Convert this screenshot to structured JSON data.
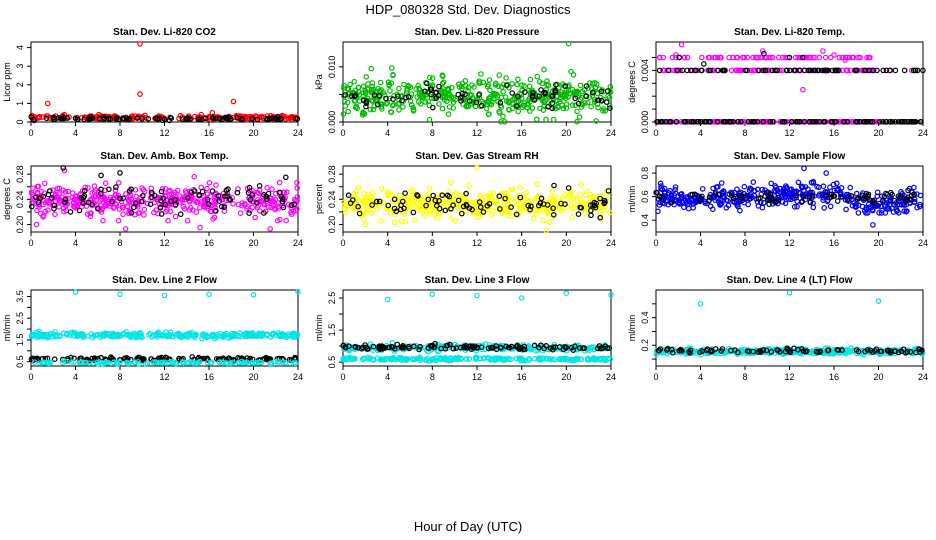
{
  "figure": {
    "title": "HDP_080328  Std. Dev. Diagnostics",
    "xlabel": "Hour of Day (UTC)"
  },
  "chart_data": [
    {
      "type": "scatter",
      "title": "Stan. Dev. Li-820 CO2",
      "xlabel": "",
      "ylabel": "Licor ppm",
      "xlim": [
        0,
        24
      ],
      "ylim": [
        0,
        4.3
      ],
      "xticks": [
        0,
        4,
        8,
        12,
        16,
        20,
        24
      ],
      "yticks": [
        0,
        1,
        2,
        3,
        4
      ],
      "ytick_labels": [
        "0",
        "1",
        "2",
        "3",
        "4"
      ],
      "series": [
        {
          "name": "primary",
          "color": "#ff0000",
          "points": [
            [
              1.5,
              1.0
            ],
            [
              3.0,
              0.4
            ],
            [
              6.1,
              0.4
            ],
            [
              9.8,
              4.2
            ],
            [
              9.8,
              1.5
            ],
            [
              15.3,
              0.4
            ],
            [
              16.3,
              0.5
            ],
            [
              18.2,
              1.1
            ],
            [
              18.5,
              0.3
            ],
            [
              20.7,
              0.3
            ]
          ],
          "cloud": {
            "center": 0.25,
            "spread": 0.08,
            "n": 180
          }
        },
        {
          "name": "secondary",
          "color": "#000000",
          "points": [],
          "cloud": {
            "center": 0.18,
            "spread": 0.06,
            "n": 90
          }
        }
      ]
    },
    {
      "type": "scatter",
      "title": "Stan. Dev. Li-820 Pressure",
      "xlabel": "",
      "ylabel": "kPa",
      "xlim": [
        0,
        24
      ],
      "ylim": [
        0,
        0.0145
      ],
      "xticks": [
        0,
        4,
        8,
        12,
        16,
        20,
        24
      ],
      "yticks": [
        0,
        0.005,
        0.01
      ],
      "ytick_labels": [
        "0.000",
        "0.010"
      ],
      "ytick_label_values": [
        0,
        0.01
      ],
      "series": [
        {
          "name": "primary",
          "color": "#00bb00",
          "points": [
            [
              20.2,
              0.0142
            ],
            [
              14.0,
              0.0085
            ],
            [
              18.0,
              0.0095
            ]
          ],
          "cloud": {
            "center": 0.0045,
            "spread": 0.0028,
            "n": 460
          }
        },
        {
          "name": "secondary",
          "color": "#000000",
          "points": [
            [
              7.5,
              0.007
            ],
            [
              21.8,
              0.0065
            ]
          ],
          "cloud": {
            "center": 0.0045,
            "spread": 0.0016,
            "n": 70
          }
        }
      ]
    },
    {
      "type": "scatter",
      "title": "Stan. Dev. Li-820 Temp.",
      "xlabel": "",
      "ylabel": "degrees C",
      "xlim": [
        0,
        24
      ],
      "ylim": [
        0,
        0.0062
      ],
      "xticks": [
        0,
        4,
        8,
        12,
        16,
        20,
        24
      ],
      "yticks": [
        0,
        0.001,
        0.002,
        0.003,
        0.004,
        0.005
      ],
      "ytick_labels": [
        "0.000",
        "0.004"
      ],
      "ytick_label_values": [
        0,
        0.004
      ],
      "series": [
        {
          "name": "primary",
          "color": "#ff00ff",
          "points": [
            [
              1.8,
              0.0052
            ],
            [
              2.3,
              0.006
            ],
            [
              9.6,
              0.0055
            ],
            [
              13.2,
              0.0025
            ],
            [
              15.0,
              0.0055
            ],
            [
              16.0,
              0.0052
            ],
            [
              17.0,
              0.0048
            ],
            [
              21.0,
              0.004
            ],
            [
              23.0,
              0.004
            ]
          ],
          "levels": [
            0,
            0.004,
            0.005
          ],
          "xmax": 20.0
        },
        {
          "name": "secondary",
          "color": "#000000",
          "points": [
            [
              2.1,
              0.005
            ],
            [
              4.3,
              0.0045
            ],
            [
              6.2,
              0.004
            ],
            [
              9.7,
              0.0053
            ],
            [
              12.0,
              0.005
            ],
            [
              13.2,
              0.005
            ]
          ],
          "levels": [
            0,
            0.004
          ],
          "xmax": 24.0
        }
      ]
    },
    {
      "type": "scatter",
      "title": "Stan. Dev. Amb. Box Temp.",
      "xlabel": "",
      "ylabel": "degrees C",
      "xlim": [
        0,
        24
      ],
      "ylim": [
        0.188,
        0.293
      ],
      "xticks": [
        0,
        4,
        8,
        12,
        16,
        20,
        24
      ],
      "yticks": [
        0.2,
        0.22,
        0.24,
        0.26,
        0.28
      ],
      "ytick_labels": [
        "0.20",
        "0.24",
        "0.28"
      ],
      "ytick_label_values": [
        0.2,
        0.24,
        0.28
      ],
      "series": [
        {
          "name": "primary",
          "color": "#ff00ff",
          "points": [
            [
              0.5,
              0.2
            ],
            [
              3.0,
              0.286
            ],
            [
              8.5,
              0.193
            ],
            [
              15.2,
              0.195
            ],
            [
              21.5,
              0.193
            ]
          ],
          "cloud": {
            "center": 0.238,
            "spread": 0.02,
            "n": 430
          }
        },
        {
          "name": "secondary",
          "color": "#000000",
          "points": [
            [
              2.9,
              0.29
            ],
            [
              6.3,
              0.278
            ],
            [
              8.0,
              0.282
            ],
            [
              22.9,
              0.275
            ]
          ],
          "cloud": {
            "center": 0.24,
            "spread": 0.018,
            "n": 90
          }
        }
      ]
    },
    {
      "type": "scatter",
      "title": "Stan. Dev. Gas Stream RH",
      "xlabel": "",
      "ylabel": "percent",
      "xlim": [
        0,
        24
      ],
      "ylim": [
        0.188,
        0.293
      ],
      "xticks": [
        0,
        4,
        8,
        12,
        16,
        20,
        24
      ],
      "yticks": [
        0.2,
        0.22,
        0.24,
        0.26,
        0.28
      ],
      "ytick_labels": [
        "0.20",
        "0.24",
        "0.28"
      ],
      "ytick_label_values": [
        0.2,
        0.24,
        0.28
      ],
      "series": [
        {
          "name": "primary",
          "color": "#ffff00",
          "points": [
            [
              12.0,
              0.29
            ],
            [
              18.2,
              0.19
            ],
            [
              2.0,
              0.2
            ]
          ],
          "cloud": {
            "center": 0.232,
            "spread": 0.018,
            "n": 430
          }
        },
        {
          "name": "secondary",
          "color": "#000000",
          "points": [
            [
              18.9,
              0.262
            ],
            [
              20.2,
              0.258
            ],
            [
              14.0,
              0.245
            ]
          ],
          "cloud": {
            "center": 0.232,
            "spread": 0.016,
            "n": 80
          }
        }
      ]
    },
    {
      "type": "scatter",
      "title": "Stan. Dev. Sample Flow",
      "xlabel": "",
      "ylabel": "ml/min",
      "xlim": [
        0,
        24
      ],
      "ylim": [
        0.3,
        0.86
      ],
      "xticks": [
        0,
        4,
        8,
        12,
        16,
        20,
        24
      ],
      "yticks": [
        0.4,
        0.6,
        0.8
      ],
      "ytick_labels": [
        "0.4",
        "0.6",
        "0.8"
      ],
      "series": [
        {
          "name": "primary",
          "color": "#0000ee",
          "points": [
            [
              13.3,
              0.84
            ],
            [
              15.3,
              0.8
            ],
            [
              19.5,
              0.36
            ]
          ],
          "cloud": {
            "center": 0.59,
            "spread": 0.08,
            "n": 430,
            "trend": [
              [
                0,
                0.6
              ],
              [
                8,
                0.58
              ],
              [
                12,
                0.63
              ],
              [
                16,
                0.62
              ],
              [
                18,
                0.55
              ],
              [
                20,
                0.52
              ],
              [
                24,
                0.56
              ]
            ]
          }
        },
        {
          "name": "secondary",
          "color": "#000000",
          "points": [],
          "cloud": {
            "center": 0.6,
            "spread": 0.05,
            "n": 70
          }
        }
      ]
    },
    {
      "type": "scatter",
      "title": "Stan. Dev. Line 2 Flow",
      "xlabel": "",
      "ylabel": "ml/min",
      "xlim": [
        0,
        24
      ],
      "ylim": [
        0.3,
        3.8
      ],
      "xticks": [
        0,
        4,
        8,
        12,
        16,
        20,
        24
      ],
      "yticks": [
        0.5,
        1.0,
        1.5,
        2.0,
        2.5,
        3.0,
        3.5
      ],
      "ytick_labels": [
        "0.5",
        "1.5",
        "2.5",
        "3.5"
      ],
      "ytick_label_values": [
        0.5,
        1.5,
        2.5,
        3.5
      ],
      "series": [
        {
          "name": "primary",
          "color": "#00e5e5",
          "points": [
            [
              4.0,
              3.7
            ],
            [
              8.0,
              3.6
            ],
            [
              12.0,
              3.55
            ],
            [
              16.0,
              3.6
            ],
            [
              20.0,
              3.58
            ],
            [
              24.0,
              3.72
            ]
          ],
          "cloud": {
            "center": 1.72,
            "spread": 0.1,
            "n": 300
          }
        },
        {
          "name": "secondary",
          "color": "#000000",
          "points": [],
          "cloud": {
            "center": 0.62,
            "spread": 0.06,
            "n": 140
          }
        },
        {
          "name": "tertiary",
          "color": "#00e5e5",
          "points": [],
          "cloud": {
            "center": 0.45,
            "spread": 0.05,
            "n": 120
          }
        }
      ]
    },
    {
      "type": "scatter",
      "title": "Stan. Dev. Line 3 Flow",
      "xlabel": "",
      "ylabel": "ml/min",
      "xlim": [
        0,
        24
      ],
      "ylim": [
        0.38,
        2.75
      ],
      "xticks": [
        0,
        4,
        8,
        12,
        16,
        20,
        24
      ],
      "yticks": [
        0.5,
        1.0,
        1.5,
        2.0,
        2.5
      ],
      "ytick_labels": [
        "0.5",
        "1.5",
        "2.5"
      ],
      "ytick_label_values": [
        0.5,
        1.5,
        2.5
      ],
      "series": [
        {
          "name": "primary",
          "color": "#00e5e5",
          "points": [
            [
              4.0,
              2.45
            ],
            [
              8.0,
              2.62
            ],
            [
              12.0,
              2.58
            ],
            [
              16.0,
              2.5
            ],
            [
              20.0,
              2.65
            ],
            [
              24.0,
              2.6
            ]
          ],
          "cloud": {
            "center": 0.95,
            "spread": 0.08,
            "n": 260
          }
        },
        {
          "name": "secondary",
          "color": "#000000",
          "points": [],
          "cloud": {
            "center": 0.96,
            "spread": 0.06,
            "n": 120
          }
        },
        {
          "name": "tertiary",
          "color": "#00e5e5",
          "points": [],
          "cloud": {
            "center": 0.6,
            "spread": 0.04,
            "n": 220
          }
        }
      ]
    },
    {
      "type": "scatter",
      "title": "Stan. Dev. Line 4 (LT) Flow",
      "xlabel": "",
      "ylabel": "ml/min",
      "xlim": [
        0,
        24
      ],
      "ylim": [
        0.05,
        0.6
      ],
      "xticks": [
        0,
        4,
        8,
        12,
        16,
        20,
        24
      ],
      "yticks": [
        0.1,
        0.2,
        0.3,
        0.4,
        0.5
      ],
      "ytick_labels": [
        "0.2",
        "0.4"
      ],
      "ytick_label_values": [
        0.2,
        0.4
      ],
      "series": [
        {
          "name": "primary",
          "color": "#00e5e5",
          "points": [
            [
              4.0,
              0.5
            ],
            [
              12.0,
              0.58
            ],
            [
              20.0,
              0.52
            ]
          ],
          "cloud": {
            "center": 0.155,
            "spread": 0.015,
            "n": 360
          }
        },
        {
          "name": "secondary",
          "color": "#000000",
          "points": [],
          "cloud": {
            "center": 0.16,
            "spread": 0.012,
            "n": 90
          }
        }
      ]
    }
  ]
}
